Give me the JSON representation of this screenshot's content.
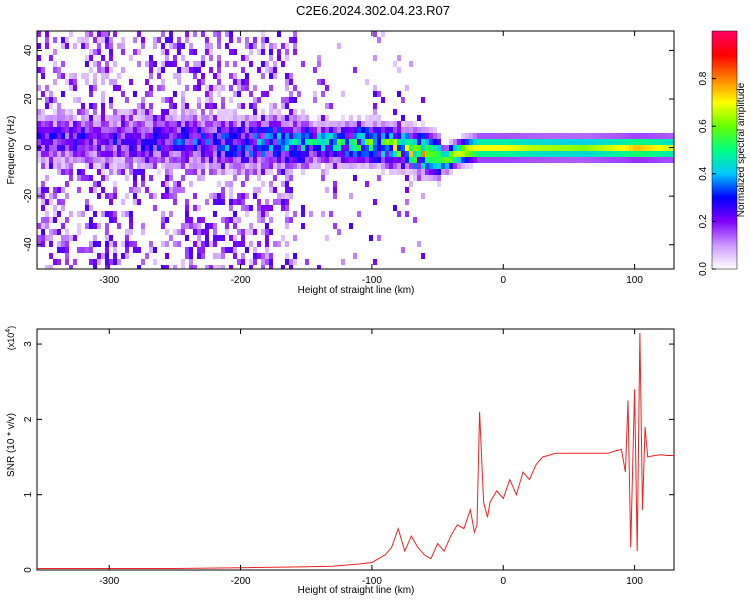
{
  "title": "C2E6.2024.302.04.23.R07",
  "chart_data": [
    {
      "type": "heatmap",
      "xlabel": "Height of straight line (km)",
      "ylabel": "Frequency (Hz)",
      "xlim": [
        -355,
        130
      ],
      "ylim": [
        -50,
        48
      ],
      "xticks": [
        -300,
        -200,
        -100,
        0,
        100
      ],
      "yticks": [
        -40,
        -20,
        0,
        20,
        40
      ],
      "colorbar": {
        "label": "Normalized spectral amplitude",
        "range": [
          0,
          1
        ],
        "ticks": [
          0.0,
          0.2,
          0.4,
          0.6,
          0.8
        ],
        "colors": [
          "#ffffff",
          "#cc99ff",
          "#7f00ff",
          "#0000ff",
          "#00c8ff",
          "#00ff80",
          "#66ff00",
          "#ffff00",
          "#ff8000",
          "#ff0000",
          "#ff0066"
        ]
      },
      "ridge": {
        "x": [
          -355,
          -300,
          -250,
          -200,
          -150,
          -100,
          -80,
          -60,
          -50,
          -45,
          -40,
          -30,
          -20,
          0,
          20,
          60,
          90,
          100,
          110,
          130
        ],
        "center_hz": [
          5,
          4,
          4,
          3,
          3,
          3,
          1,
          -1,
          -3,
          -4,
          -2,
          0,
          1,
          1,
          1,
          1,
          1,
          1,
          1,
          1
        ],
        "peak_amplitude": [
          0.2,
          0.22,
          0.25,
          0.3,
          0.35,
          0.45,
          0.5,
          0.6,
          0.55,
          0.6,
          0.65,
          0.7,
          0.7,
          0.7,
          0.65,
          0.62,
          0.7,
          0.75,
          0.72,
          0.65
        ]
      }
    },
    {
      "type": "line",
      "xlabel": "Height of straight line (km)",
      "ylabel": "SNR (10 * v/v)",
      "scale_label": "(x10",
      "scale_exp": "4",
      "xlim": [
        -355,
        130
      ],
      "ylim": [
        0,
        3.2
      ],
      "xticks": [
        -300,
        -200,
        -100,
        0,
        100
      ],
      "yticks": [
        0,
        1,
        2,
        3
      ],
      "color": "#ee2222",
      "series": [
        {
          "x": [
            -355,
            -300,
            -250,
            -200,
            -160,
            -130,
            -110,
            -100,
            -95,
            -90,
            -85,
            -80,
            -75,
            -70,
            -65,
            -60,
            -55,
            -50,
            -45,
            -40,
            -35,
            -30,
            -25,
            -22,
            -20,
            -18,
            -15,
            -12,
            -10,
            -5,
            0,
            5,
            10,
            15,
            20,
            25,
            30,
            40,
            50,
            60,
            70,
            80,
            85,
            90,
            93,
            95,
            97,
            100,
            102,
            104,
            106,
            108,
            110,
            115,
            120,
            125,
            130
          ],
          "values": [
            0.02,
            0.02,
            0.02,
            0.03,
            0.04,
            0.05,
            0.08,
            0.1,
            0.15,
            0.2,
            0.3,
            0.55,
            0.25,
            0.45,
            0.3,
            0.2,
            0.15,
            0.35,
            0.25,
            0.45,
            0.6,
            0.55,
            0.8,
            0.5,
            0.6,
            2.1,
            0.9,
            0.7,
            0.9,
            1.05,
            0.95,
            1.2,
            1.0,
            1.3,
            1.2,
            1.4,
            1.5,
            1.55,
            1.55,
            1.55,
            1.55,
            1.55,
            1.58,
            1.6,
            1.3,
            2.25,
            0.3,
            2.4,
            0.25,
            3.15,
            0.8,
            1.9,
            1.5,
            1.52,
            1.53,
            1.52,
            1.52
          ]
        }
      ]
    }
  ]
}
